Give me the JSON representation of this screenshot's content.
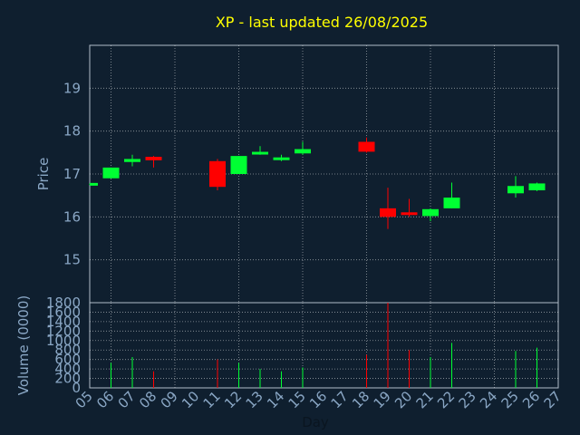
{
  "chart_data": {
    "type": "candlestick",
    "title": "XP - last updated 26/08/2025",
    "xlabel": "Day",
    "price_label": "Price",
    "volume_label": "Volume (0000)",
    "x_tick_labels": [
      "05",
      "06",
      "07",
      "08",
      "09",
      "10",
      "11",
      "12",
      "13",
      "14",
      "15",
      "16",
      "17",
      "18",
      "19",
      "20",
      "21",
      "22",
      "23",
      "24",
      "25",
      "26",
      "27"
    ],
    "price_ylim": [
      14.0,
      20.0
    ],
    "price_ticks": [
      15,
      16,
      17,
      18,
      19
    ],
    "volume_ylim": [
      0,
      1800
    ],
    "volume_ticks": [
      0,
      200,
      400,
      600,
      800,
      1000,
      1200,
      1400,
      1600,
      1800
    ],
    "grid": true,
    "colors": {
      "background": "#0f1f2f",
      "up": "#00ff33",
      "down": "#ff0000",
      "title": "#ffff00",
      "axis_text": "#8aa7c5",
      "grid": "#ffffff",
      "frame": "#b0bcc8"
    },
    "candles": [
      {
        "day": "05",
        "open": 16.75,
        "close": 16.77,
        "high": 16.77,
        "low": 16.75,
        "volume": 0
      },
      {
        "day": "06",
        "open": 16.9,
        "close": 17.15,
        "high": 17.15,
        "low": 16.9,
        "volume": 530
      },
      {
        "day": "07",
        "open": 17.28,
        "close": 17.35,
        "high": 17.45,
        "low": 17.18,
        "volume": 650
      },
      {
        "day": "08",
        "open": 17.4,
        "close": 17.32,
        "high": 17.42,
        "low": 17.15,
        "volume": 350
      },
      {
        "day": "11",
        "open": 17.3,
        "close": 16.7,
        "high": 17.35,
        "low": 16.62,
        "volume": 600
      },
      {
        "day": "12",
        "open": 17.0,
        "close": 17.42,
        "high": 17.42,
        "low": 17.0,
        "volume": 530
      },
      {
        "day": "13",
        "open": 17.47,
        "close": 17.5,
        "high": 17.65,
        "low": 17.45,
        "volume": 400
      },
      {
        "day": "14",
        "open": 17.33,
        "close": 17.38,
        "high": 17.45,
        "low": 17.3,
        "volume": 350
      },
      {
        "day": "15",
        "open": 17.48,
        "close": 17.58,
        "high": 17.75,
        "low": 17.45,
        "volume": 430
      },
      {
        "day": "18",
        "open": 17.75,
        "close": 17.52,
        "high": 17.85,
        "low": 17.5,
        "volume": 700
      },
      {
        "day": "19",
        "open": 16.2,
        "close": 16.0,
        "high": 16.68,
        "low": 15.72,
        "volume": 1800
      },
      {
        "day": "20",
        "open": 16.1,
        "close": 16.05,
        "high": 16.42,
        "low": 16.0,
        "volume": 800
      },
      {
        "day": "21",
        "open": 16.02,
        "close": 16.18,
        "high": 16.2,
        "low": 15.9,
        "volume": 650
      },
      {
        "day": "22",
        "open": 16.2,
        "close": 16.45,
        "high": 16.8,
        "low": 16.2,
        "volume": 950
      },
      {
        "day": "25",
        "open": 16.55,
        "close": 16.72,
        "high": 16.95,
        "low": 16.45,
        "volume": 780
      },
      {
        "day": "26",
        "open": 16.62,
        "close": 16.78,
        "high": 16.8,
        "low": 16.6,
        "volume": 850
      }
    ]
  }
}
